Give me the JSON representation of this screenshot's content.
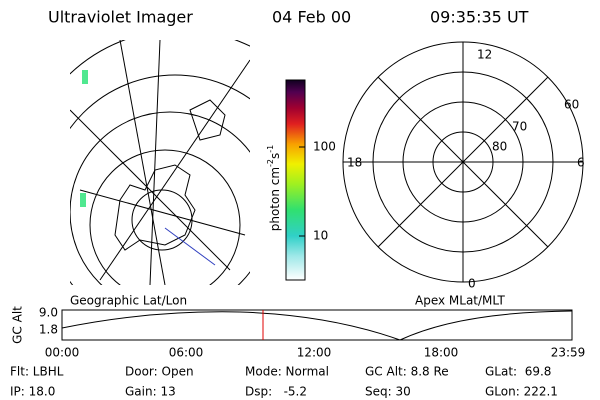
{
  "header": {
    "title": "Ultraviolet Imager",
    "date": "04 Feb 00",
    "time": "09:35:35 UT"
  },
  "colorbar": {
    "label": "photon cm",
    "exp1": "-2",
    "unit2": "s",
    "exp2": "-1",
    "ticks": [
      "100",
      "10"
    ]
  },
  "polar": {
    "mlt_labels": [
      "12",
      "18",
      "6",
      "0"
    ],
    "mlat_labels": [
      "60",
      "70",
      "80"
    ]
  },
  "map_label": "Geographic Lat/Lon",
  "polar_label": "Apex MLat/MLT",
  "altitude_plot": {
    "ylabel": "GC Alt",
    "yticks": [
      "9.0",
      "1.8"
    ],
    "xticks": [
      "00:00",
      "06:00",
      "12:00",
      "18:00",
      "23:59"
    ]
  },
  "info": [
    [
      "Flt: LBHL",
      "Door: Open",
      "Mode: Normal",
      "GC Alt: 8.8 Re",
      "GLat:  69.8"
    ],
    [
      "IP: 18.0",
      "Gain: 13",
      "Dsp:   -5.2",
      "Seq: 30",
      "GLon: 222.1"
    ]
  ]
}
